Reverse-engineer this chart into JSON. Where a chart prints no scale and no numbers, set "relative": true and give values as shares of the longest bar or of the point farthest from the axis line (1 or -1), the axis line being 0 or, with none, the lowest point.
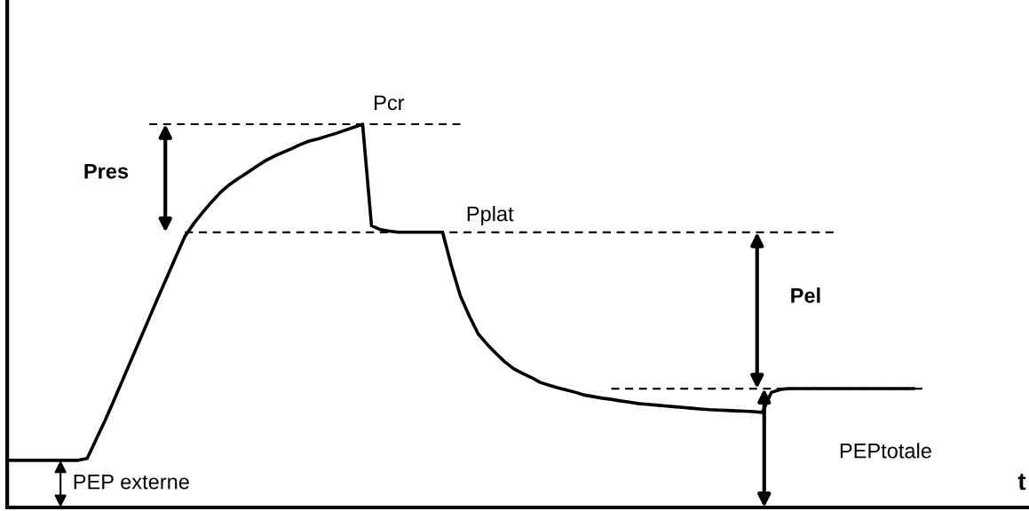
{
  "chart_data": {
    "type": "line",
    "relative": true,
    "xlabel": "t",
    "categories": [
      null,
      null,
      null,
      null,
      null,
      null,
      null,
      null,
      null,
      null,
      null,
      null,
      null,
      null,
      null,
      null,
      null,
      null,
      null,
      null,
      null,
      null,
      null,
      null,
      null,
      null,
      null,
      null,
      null,
      null,
      null,
      null,
      null,
      null,
      null,
      null,
      null,
      null,
      null,
      null,
      null,
      null,
      null,
      null,
      null,
      null,
      null,
      null,
      null,
      null,
      null,
      null,
      null,
      null,
      null,
      null,
      null,
      null,
      null,
      null,
      null,
      null,
      null,
      null,
      null,
      null,
      null,
      null,
      null,
      null,
      null,
      null,
      null,
      null,
      null,
      null,
      null,
      null,
      null,
      null,
      null,
      null,
      null,
      null,
      null,
      null,
      null,
      null,
      null,
      null,
      null,
      null,
      null,
      null,
      null,
      null,
      null,
      null,
      null,
      null,
      null,
      null,
      null,
      null,
      null,
      null,
      null,
      null,
      null,
      null,
      null,
      null,
      null,
      null,
      null
    ],
    "series": [
      {
        "color": "#000000",
        "line_style": "solid",
        "values": [
          0.123,
          0.123,
          0.123,
          0.123,
          0.123,
          0.123,
          0.123,
          0.123,
          0.123,
          0.128,
          0.177,
          0.226,
          0.279,
          0.333,
          0.387,
          0.441,
          0.495,
          0.549,
          0.602,
          0.655,
          0.707,
          0.741,
          0.77,
          0.797,
          0.822,
          0.842,
          0.858,
          0.873,
          0.889,
          0.904,
          0.916,
          0.926,
          0.936,
          0.947,
          0.956,
          0.962,
          0.969,
          0.976,
          0.984,
          0.992,
          1,
          0.735,
          0.725,
          0.721,
          0.718,
          0.718,
          0.718,
          0.718,
          0.718,
          0.718,
          0.63,
          0.552,
          0.5,
          0.453,
          0.426,
          0.402,
          0.38,
          0.362,
          0.35,
          0.339,
          0.326,
          0.319,
          0.312,
          0.306,
          0.3,
          0.293,
          0.289,
          0.285,
          0.282,
          0.278,
          0.275,
          0.271,
          0.269,
          0.267,
          0.265,
          0.263,
          0.261,
          0.259,
          0.257,
          0.255,
          0.254,
          0.253,
          0.252,
          0.251,
          0.25,
          0.248,
          0.3,
          0.308,
          0.31,
          0.31,
          0.31,
          0.31,
          0.31,
          0.31,
          0.31,
          0.31,
          0.31,
          0.31,
          0.31,
          0.31,
          0.31,
          0.31,
          0.31,
          null,
          null,
          null,
          null,
          null,
          null,
          null,
          null,
          null,
          null,
          null,
          null
        ]
      },
      {
        "color": "#000000",
        "line_style": "dashed",
        "values": [
          null,
          null,
          null,
          null,
          null,
          null,
          null,
          null,
          null,
          null,
          null,
          null,
          null,
          null,
          null,
          null,
          1,
          1,
          1,
          1,
          1,
          1,
          1,
          1,
          1,
          1,
          1,
          1,
          1,
          1,
          1,
          1,
          1,
          1,
          1,
          1,
          1,
          1,
          1,
          1,
          1,
          1,
          1,
          1,
          1,
          1,
          1,
          1,
          1,
          1,
          1,
          1,
          null,
          null,
          null,
          null,
          null,
          null,
          null,
          null,
          null,
          null,
          null,
          null,
          null,
          null,
          null,
          null,
          null,
          null,
          null,
          null,
          null,
          null,
          null,
          null,
          null,
          null,
          null,
          null,
          null,
          null,
          null,
          null,
          null,
          null,
          null,
          null,
          null,
          null,
          null,
          null,
          null,
          null,
          null,
          null,
          null,
          null,
          null,
          null,
          null,
          null,
          null,
          null,
          null,
          null,
          null,
          null,
          null,
          null,
          null,
          null,
          null,
          null,
          null
        ]
      },
      {
        "color": "#000000",
        "line_style": "dashed",
        "values": [
          null,
          null,
          null,
          null,
          null,
          null,
          null,
          null,
          null,
          null,
          null,
          null,
          null,
          null,
          null,
          null,
          null,
          null,
          null,
          null,
          0.718,
          0.718,
          0.718,
          0.718,
          0.718,
          0.718,
          0.718,
          0.718,
          0.718,
          0.718,
          0.718,
          0.718,
          0.718,
          0.718,
          0.718,
          0.718,
          0.718,
          0.718,
          0.718,
          0.718,
          0.718,
          0.718,
          0.718,
          0.718,
          0.718,
          0.718,
          0.718,
          0.718,
          0.718,
          0.718,
          0.718,
          0.718,
          0.718,
          0.718,
          0.718,
          0.718,
          0.718,
          0.718,
          0.718,
          0.718,
          0.718,
          0.718,
          0.718,
          0.718,
          0.718,
          0.718,
          0.718,
          0.718,
          0.718,
          0.718,
          0.718,
          0.718,
          0.718,
          0.718,
          0.718,
          0.718,
          0.718,
          0.718,
          0.718,
          0.718,
          0.718,
          0.718,
          0.718,
          0.718,
          0.718,
          0.718,
          0.718,
          0.718,
          0.718,
          0.718,
          0.718,
          0.718,
          0.718,
          0.718,
          null,
          null,
          null,
          null,
          null,
          null,
          null,
          null,
          null,
          null,
          null,
          null,
          null,
          null,
          null,
          null,
          null,
          null,
          null,
          null,
          null
        ]
      },
      {
        "color": "#000000",
        "line_style": "dashed",
        "values": [
          null,
          null,
          null,
          null,
          null,
          null,
          null,
          null,
          null,
          null,
          null,
          null,
          null,
          null,
          null,
          null,
          null,
          null,
          null,
          null,
          null,
          null,
          null,
          null,
          null,
          null,
          null,
          null,
          null,
          null,
          null,
          null,
          null,
          null,
          null,
          null,
          null,
          null,
          null,
          null,
          null,
          null,
          null,
          null,
          null,
          null,
          null,
          null,
          null,
          null,
          null,
          null,
          null,
          null,
          null,
          null,
          null,
          null,
          null,
          null,
          null,
          null,
          null,
          null,
          null,
          null,
          null,
          null,
          0.31,
          0.31,
          0.31,
          0.31,
          0.31,
          0.31,
          0.31,
          0.31,
          0.31,
          0.31,
          0.31,
          0.31,
          0.31,
          0.31,
          0.31,
          0.31,
          0.31,
          0.31,
          0.31,
          0.31,
          0.31,
          0.31,
          0.31,
          0.31,
          0.31,
          0.31,
          0.31,
          0.31,
          0.31,
          0.31,
          0.31,
          0.31,
          0.31,
          0.31,
          0.31,
          0.31,
          null,
          null,
          null,
          null,
          null,
          null,
          null,
          null,
          null,
          null,
          null
        ]
      }
    ],
    "annotations": [
      "Pcr",
      "Pplat",
      "Pres",
      "Pel",
      "PEPtotale",
      "PEP externe"
    ]
  }
}
